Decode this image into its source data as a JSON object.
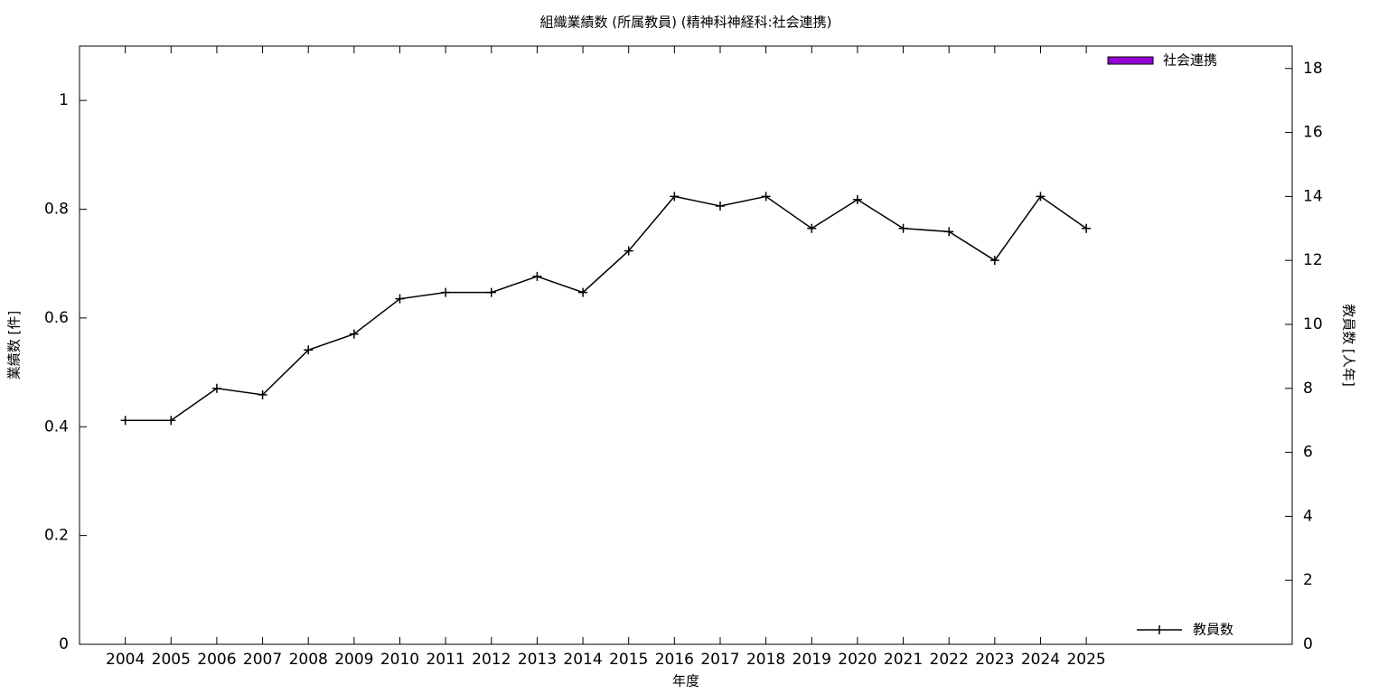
{
  "chart_data": {
    "type": "bar+line",
    "title": "組織業績数 (所属教員) (精神科神経科:社会連携)",
    "x_label": "年度",
    "y_label": "業績数 [件]",
    "y2_label": "教員数 [人年]",
    "categories": [
      "2004",
      "2005",
      "2006",
      "2007",
      "2008",
      "2009",
      "2010",
      "2011",
      "2012",
      "2013",
      "2014",
      "2015",
      "2016",
      "2017",
      "2018",
      "2019",
      "2020",
      "2021",
      "2022",
      "2023",
      "2024",
      "2025"
    ],
    "series": [
      {
        "name": "社会連携",
        "type": "bar",
        "color": "#9400d3",
        "values": [
          0,
          0,
          0,
          0,
          0,
          0,
          0,
          0,
          0,
          0,
          0,
          0,
          0,
          0,
          0,
          0,
          0,
          0,
          0,
          0,
          0,
          0
        ]
      },
      {
        "name": "教員数",
        "type": "line",
        "axis": "y2",
        "color": "#000000",
        "values": [
          7,
          7,
          8,
          7.8,
          9.2,
          9.7,
          10.8,
          11,
          11,
          11.5,
          11,
          12.3,
          14,
          13.7,
          14,
          13,
          13.9,
          13,
          12.9,
          12,
          14,
          13
        ]
      }
    ],
    "ylim": [
      0,
      1.1
    ],
    "yticks": [
      0,
      0.2,
      0.4,
      0.6,
      0.8,
      1
    ],
    "y2lim": [
      0,
      18.7
    ],
    "y2ticks": [
      0,
      2,
      4,
      6,
      8,
      10,
      12,
      14,
      16,
      18
    ],
    "grid": false
  }
}
